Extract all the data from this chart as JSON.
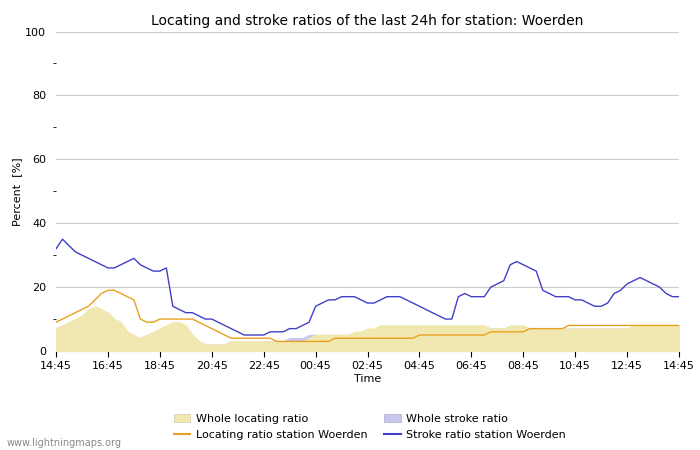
{
  "title": "Locating and stroke ratios of the last 24h for station: Woerden",
  "ylabel": "Percent  [%]",
  "xlabel": "Time",
  "ylim": [
    0,
    100
  ],
  "yticks": [
    0,
    20,
    40,
    60,
    80,
    100
  ],
  "yticks_minor": [
    10,
    30,
    50,
    70,
    90
  ],
  "xtick_labels": [
    "14:45",
    "16:45",
    "18:45",
    "20:45",
    "22:45",
    "00:45",
    "02:45",
    "04:45",
    "06:45",
    "08:45",
    "10:45",
    "12:45",
    "14:45"
  ],
  "bg_color": "#ffffff",
  "plot_bg_color": "#ffffff",
  "grid_color": "#cccccc",
  "watermark": "www.lightningmaps.org",
  "colors": {
    "whole_loc_fill": "#f0e8b0",
    "whole_stroke_fill": "#c8c8ee",
    "loc_line": "#e8a020",
    "stroke_line": "#4040c8"
  },
  "whole_locating": [
    7,
    8,
    9,
    10,
    11,
    13,
    14,
    13,
    12,
    10,
    9,
    6,
    5,
    4,
    5,
    6,
    7,
    8,
    9,
    9,
    8,
    5,
    3,
    2,
    2,
    2,
    2,
    3,
    3,
    3,
    3,
    3,
    3,
    3,
    3,
    3,
    3,
    3,
    3,
    4,
    5,
    5,
    5,
    5,
    5,
    5,
    6,
    6,
    7,
    7,
    8,
    8,
    8,
    8,
    8,
    8,
    8,
    8,
    8,
    8,
    8,
    8,
    8,
    8,
    8,
    8,
    8,
    7,
    7,
    7,
    8,
    8,
    8,
    7,
    7,
    7,
    7,
    7,
    7,
    7,
    7,
    7,
    7,
    7,
    7,
    7,
    7,
    7,
    7,
    8,
    8,
    8,
    8,
    8,
    8,
    8,
    8
  ],
  "whole_stroke": [
    7,
    8,
    8,
    9,
    9,
    10,
    10,
    9,
    8,
    7,
    6,
    5,
    4,
    4,
    5,
    5,
    6,
    7,
    8,
    8,
    7,
    5,
    3,
    2,
    2,
    2,
    2,
    3,
    3,
    3,
    3,
    3,
    3,
    3,
    3,
    3,
    4,
    4,
    4,
    5,
    5,
    5,
    5,
    5,
    5,
    5,
    5,
    5,
    6,
    6,
    7,
    7,
    7,
    7,
    7,
    7,
    7,
    7,
    7,
    7,
    7,
    7,
    7,
    7,
    7,
    7,
    7,
    7,
    7,
    7,
    7,
    7,
    7,
    7,
    7,
    7,
    7,
    7,
    7,
    7,
    7,
    7,
    7,
    7,
    7,
    7,
    7,
    7,
    7,
    7,
    8,
    8,
    8,
    8,
    8,
    8,
    8
  ],
  "loc_station": [
    9,
    10,
    11,
    12,
    13,
    14,
    16,
    18,
    19,
    19,
    18,
    17,
    16,
    10,
    9,
    9,
    10,
    10,
    10,
    10,
    10,
    10,
    9,
    8,
    7,
    6,
    5,
    4,
    4,
    4,
    4,
    4,
    4,
    4,
    3,
    3,
    3,
    3,
    3,
    3,
    3,
    3,
    3,
    4,
    4,
    4,
    4,
    4,
    4,
    4,
    4,
    4,
    4,
    4,
    4,
    4,
    5,
    5,
    5,
    5,
    5,
    5,
    5,
    5,
    5,
    5,
    5,
    6,
    6,
    6,
    6,
    6,
    6,
    7,
    7,
    7,
    7,
    7,
    7,
    8,
    8,
    8,
    8,
    8,
    8,
    8,
    8,
    8,
    8,
    8,
    8,
    8,
    8,
    8,
    8,
    8,
    8
  ],
  "stroke_station": [
    32,
    35,
    33,
    31,
    30,
    29,
    28,
    27,
    26,
    26,
    27,
    28,
    29,
    27,
    26,
    25,
    25,
    26,
    14,
    13,
    12,
    12,
    11,
    10,
    10,
    9,
    8,
    7,
    6,
    5,
    5,
    5,
    5,
    6,
    6,
    6,
    7,
    7,
    8,
    9,
    14,
    15,
    16,
    16,
    17,
    17,
    17,
    16,
    15,
    15,
    16,
    17,
    17,
    17,
    16,
    15,
    14,
    13,
    12,
    11,
    10,
    10,
    17,
    18,
    17,
    17,
    17,
    20,
    21,
    22,
    27,
    28,
    27,
    26,
    25,
    19,
    18,
    17,
    17,
    17,
    16,
    16,
    15,
    14,
    14,
    15,
    18,
    19,
    21,
    22,
    23,
    22,
    21,
    20,
    18,
    17,
    17
  ]
}
